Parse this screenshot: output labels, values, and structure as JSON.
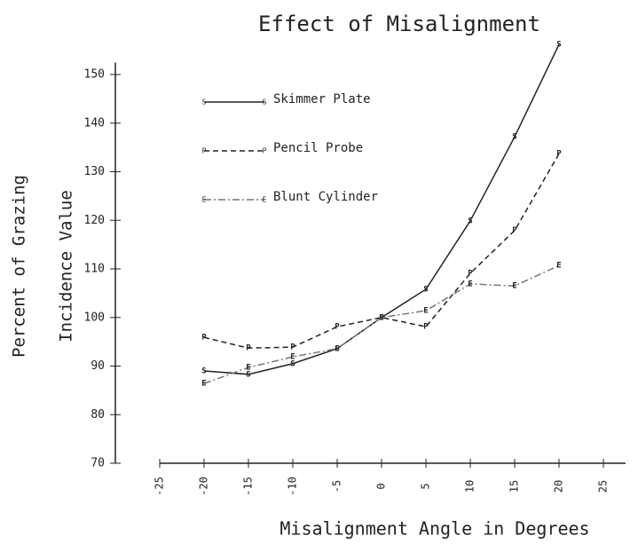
{
  "chart_data": {
    "type": "line",
    "title": "Effect of Misalignment",
    "xlabel": "Misalignment Angle in Degrees",
    "ylabel": [
      "Percent of Grazing",
      "Incidence Value"
    ],
    "x": [
      -20,
      -15,
      -10,
      -5,
      0,
      5,
      10,
      15,
      20
    ],
    "series": [
      {
        "name": "Skimmer Plate",
        "marker": "S",
        "color": "#222222",
        "dash": "none",
        "values": [
          89.0,
          88.3,
          90.5,
          93.6,
          100,
          105.8,
          119.9,
          137.2,
          156.2
        ]
      },
      {
        "name": "Pencil Probe",
        "marker": "P",
        "color": "#222222",
        "dash": "6 4",
        "values": [
          95.9,
          93.7,
          93.9,
          98.1,
          100,
          98.1,
          109.1,
          117.9,
          133.7
        ]
      },
      {
        "name": "Blunt Cylinder",
        "marker": "E",
        "color": "#777777",
        "dash": "8 3 2 3",
        "values": [
          86.4,
          89.7,
          91.9,
          93.6,
          100,
          101.4,
          106.9,
          106.5,
          110.7
        ]
      }
    ],
    "xlim": [
      -25,
      25
    ],
    "xticks": [
      -25,
      -20,
      -15,
      -10,
      -5,
      0,
      5,
      10,
      15,
      20,
      25
    ],
    "ylim": [
      70,
      157
    ],
    "yticks": [
      70,
      80,
      90,
      100,
      110,
      120,
      130,
      140,
      150
    ]
  }
}
